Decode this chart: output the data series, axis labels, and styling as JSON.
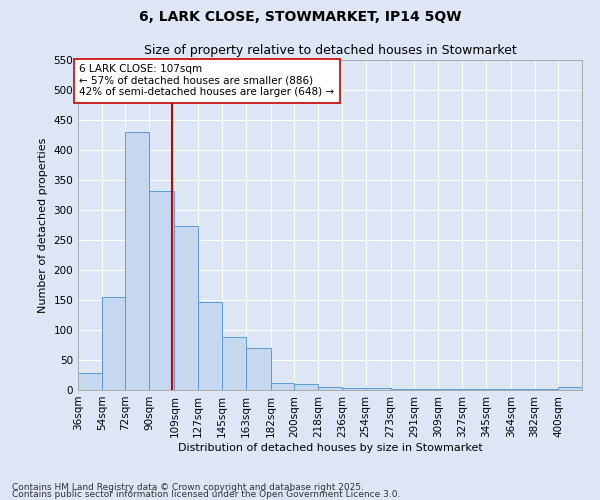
{
  "title1": "6, LARK CLOSE, STOWMARKET, IP14 5QW",
  "title2": "Size of property relative to detached houses in Stowmarket",
  "xlabel": "Distribution of detached houses by size in Stowmarket",
  "ylabel": "Number of detached properties",
  "bin_labels": [
    "36sqm",
    "54sqm",
    "72sqm",
    "90sqm",
    "109sqm",
    "127sqm",
    "145sqm",
    "163sqm",
    "182sqm",
    "200sqm",
    "218sqm",
    "236sqm",
    "254sqm",
    "273sqm",
    "291sqm",
    "309sqm",
    "327sqm",
    "345sqm",
    "364sqm",
    "382sqm",
    "400sqm"
  ],
  "bin_edges": [
    36,
    54,
    72,
    90,
    109,
    127,
    145,
    163,
    182,
    200,
    218,
    236,
    254,
    273,
    291,
    309,
    327,
    345,
    364,
    382,
    400
  ],
  "values": [
    28,
    155,
    430,
    332,
    274,
    147,
    89,
    70,
    12,
    10,
    5,
    3,
    3,
    2,
    1,
    1,
    1,
    1,
    1,
    1,
    5
  ],
  "bar_color": "#c5d8f0",
  "bar_edge_color": "#5b9bd5",
  "background_color": "#dce6f5",
  "grid_color": "#ffffff",
  "vline_x": 107,
  "vline_color": "#cc0000",
  "annotation_text": "6 LARK CLOSE: 107sqm\n← 57% of detached houses are smaller (886)\n42% of semi-detached houses are larger (648) →",
  "annotation_box_color": "#ffffff",
  "annotation_box_edge": "#cc0000",
  "ylim": [
    0,
    550
  ],
  "yticks": [
    0,
    50,
    100,
    150,
    200,
    250,
    300,
    350,
    400,
    450,
    500,
    550
  ],
  "footer1": "Contains HM Land Registry data © Crown copyright and database right 2025.",
  "footer2": "Contains public sector information licensed under the Open Government Licence 3.0.",
  "title1_fontsize": 10,
  "title2_fontsize": 9,
  "axis_fontsize": 8,
  "tick_fontsize": 7.5,
  "annotation_fontsize": 7.5,
  "footer_fontsize": 6.5
}
